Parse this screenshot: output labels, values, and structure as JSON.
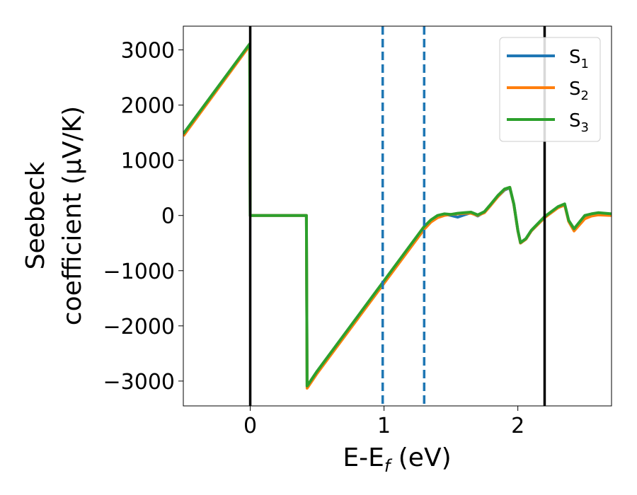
{
  "chart_data": {
    "type": "line",
    "title": "",
    "xlabel": "E-E",
    "xlabel_sub": "f",
    "xlabel_unit": " (eV)",
    "ylabel_line1": "Seebeck",
    "ylabel_line2": "coefficient  (μV/K)",
    "xlim": [
      -0.5,
      2.7
    ],
    "ylim": [
      -3450,
      3430
    ],
    "xticks": [
      0,
      1,
      2
    ],
    "xtick_labels": [
      "0",
      "1",
      "2"
    ],
    "yticks": [
      3000,
      2000,
      1000,
      0,
      -1000,
      -2000,
      -3000
    ],
    "ytick_labels": [
      "3000",
      "2000",
      "1000",
      "0",
      "−1000",
      "−2000",
      "−3000"
    ],
    "grid": false,
    "legend_position": "top-right",
    "vlines_solid": [
      0,
      2.2
    ],
    "vlines_dashed": [
      0.99,
      1.3
    ],
    "series": [
      {
        "name": "S",
        "subscript": "1",
        "color": "#1f77b4",
        "x": [
          -0.5,
          -0.004,
          0.0,
          0.42,
          0.425,
          0.5,
          1.3,
          1.35,
          1.4,
          1.45,
          1.5,
          1.55,
          1.6,
          1.65,
          1.7,
          1.75,
          1.8,
          1.85,
          1.9,
          1.94,
          1.97,
          2.0,
          2.02,
          2.06,
          2.1,
          2.2,
          2.3,
          2.35,
          2.38,
          2.42,
          2.46,
          2.5,
          2.55,
          2.6,
          2.7
        ],
        "y": [
          1480,
          3100,
          0,
          0,
          -3100,
          -2830,
          -220,
          -100,
          -20,
          20,
          0,
          -30,
          10,
          50,
          -10,
          60,
          200,
          340,
          460,
          500,
          200,
          -280,
          -500,
          -430,
          -280,
          -30,
          150,
          200,
          -100,
          -260,
          -140,
          -20,
          20,
          40,
          20
        ]
      },
      {
        "name": "S",
        "subscript": "2",
        "color": "#ff7f0e",
        "x": [
          -0.5,
          -0.004,
          0.0,
          0.42,
          0.425,
          0.5,
          1.3,
          1.35,
          1.4,
          1.45,
          1.5,
          1.55,
          1.6,
          1.65,
          1.7,
          1.75,
          1.8,
          1.85,
          1.9,
          1.94,
          1.97,
          2.0,
          2.02,
          2.06,
          2.1,
          2.2,
          2.3,
          2.35,
          2.38,
          2.42,
          2.46,
          2.5,
          2.55,
          2.6,
          2.7
        ],
        "y": [
          1440,
          3080,
          0,
          0,
          -3130,
          -2860,
          -250,
          -120,
          -40,
          0,
          20,
          30,
          40,
          40,
          0,
          50,
          190,
          340,
          470,
          510,
          200,
          -280,
          -500,
          -430,
          -280,
          -40,
          140,
          190,
          -110,
          -280,
          -170,
          -60,
          -10,
          10,
          0
        ]
      },
      {
        "name": "S",
        "subscript": "3",
        "color": "#2ca02c",
        "x": [
          -0.5,
          -0.004,
          0.0,
          0.42,
          0.425,
          0.5,
          1.3,
          1.35,
          1.4,
          1.45,
          1.5,
          1.55,
          1.6,
          1.65,
          1.7,
          1.75,
          1.8,
          1.85,
          1.9,
          1.94,
          1.97,
          2.0,
          2.02,
          2.06,
          2.1,
          2.2,
          2.3,
          2.35,
          2.38,
          2.42,
          2.46,
          2.5,
          2.55,
          2.6,
          2.7
        ],
        "y": [
          1480,
          3110,
          0,
          0,
          -3090,
          -2820,
          -200,
          -80,
          0,
          30,
          20,
          40,
          50,
          60,
          10,
          70,
          210,
          360,
          480,
          510,
          210,
          -270,
          -490,
          -420,
          -270,
          -20,
          160,
          210,
          -90,
          -240,
          -120,
          0,
          30,
          50,
          30
        ]
      }
    ]
  }
}
